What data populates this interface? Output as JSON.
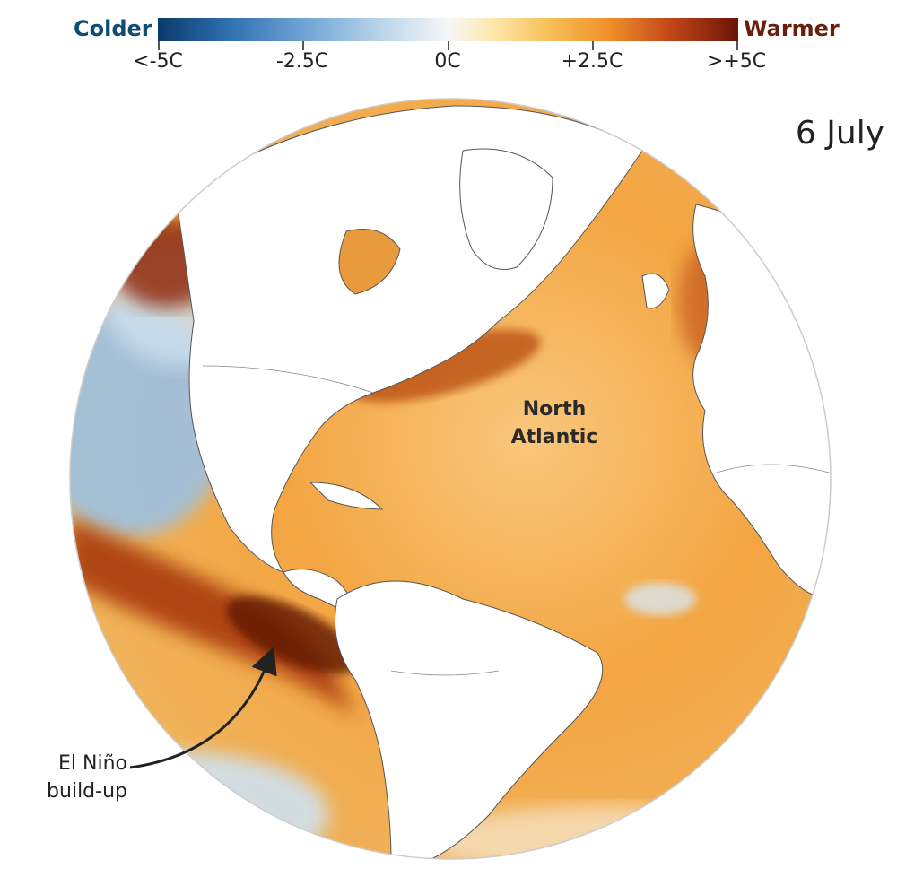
{
  "legend": {
    "cold_label": "Colder",
    "warm_label": "Warmer",
    "ticks": [
      "<-5C",
      "-2.5C",
      "0C",
      "+2.5C",
      ">+5C"
    ],
    "colors": {
      "coldest": "#0b3a6b",
      "neutral": "#f7f7f7",
      "warmest": "#6b1406"
    }
  },
  "date": "6 July",
  "map": {
    "projection": "orthographic globe",
    "centred_on": "Atlantic Ocean",
    "labels": {
      "north_atlantic": [
        "North",
        "Atlantic"
      ],
      "el_nino": [
        "El Niño",
        "build-up"
      ]
    }
  }
}
